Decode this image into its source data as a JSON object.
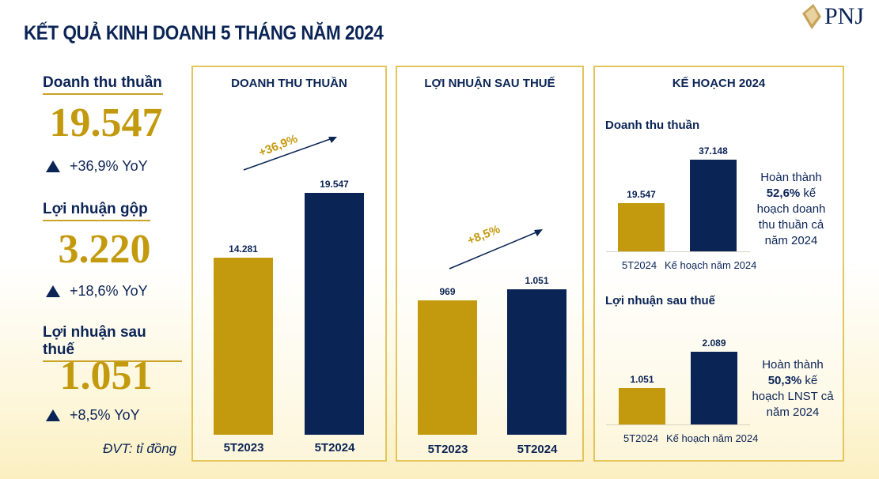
{
  "title": "KẾT QUẢ KINH DOANH 5 THÁNG NĂM 2024",
  "logo": "PNJ",
  "kpis": [
    {
      "label": "Doanh thu thuần",
      "value": "19.547",
      "yoy": "+36,9% YoY"
    },
    {
      "label": "Lợi nhuận gộp",
      "value": "3.220",
      "yoy": "+18,6% YoY"
    },
    {
      "label": "Lợi nhuận sau thuế",
      "value": "1.051",
      "yoy": "+8,5% YoY"
    }
  ],
  "unit": "ĐVT: tỉ đồng",
  "colors": {
    "gold": "#c39a0e",
    "navy": "#0b2456"
  },
  "chart_data": [
    {
      "type": "bar",
      "title": "DOANH THU THUẦN",
      "categories": [
        "5T2023",
        "5T2024"
      ],
      "values": [
        14281,
        19547
      ],
      "labels": [
        "14.281",
        "19.547"
      ],
      "growth": "+36,9%",
      "ylim": [
        0,
        19547
      ]
    },
    {
      "type": "bar",
      "title": "LỢI NHUẬN SAU THUẾ",
      "categories": [
        "5T2023",
        "5T2024"
      ],
      "values": [
        969,
        1051
      ],
      "labels": [
        "969",
        "1.051"
      ],
      "growth": "+8,5%",
      "ylim": [
        0,
        1051
      ]
    },
    {
      "type": "bar",
      "panel_title": "KẾ HOẠCH 2024",
      "title": "Doanh thu thuần",
      "categories": [
        "5T2024",
        "Kế hoạch năm 2024"
      ],
      "values": [
        19547,
        37148
      ],
      "labels": [
        "19.547",
        "37.148"
      ],
      "note": [
        "Hoàn thành",
        "52,6%",
        " kế",
        "hoạch doanh",
        "thu thuần cả",
        "năm 2024"
      ],
      "ylim": [
        0,
        37148
      ]
    },
    {
      "type": "bar",
      "title": "Lợi nhuận sau thuế",
      "categories": [
        "5T2024",
        "Kế hoạch năm 2024"
      ],
      "values": [
        1051,
        2089
      ],
      "labels": [
        "1.051",
        "2.089"
      ],
      "note": [
        "Hoàn thành",
        "50,3%",
        " kế",
        "hoạch LNST cả",
        "năm 2024"
      ],
      "ylim": [
        0,
        2089
      ]
    }
  ]
}
